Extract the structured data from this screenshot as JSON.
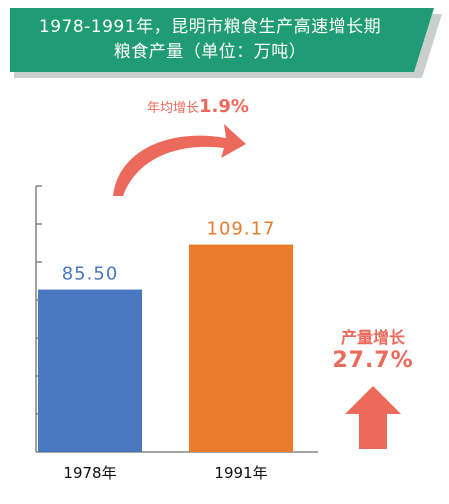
{
  "banner": {
    "line1": "1978-1991年，昆明市粮食生产高速增长期",
    "line2": "粮食产量（单位：万吨）"
  },
  "growth": {
    "label": "年均增长",
    "value": "1.9%"
  },
  "side": {
    "label": "产量增长",
    "value": "27.7%"
  },
  "colors": {
    "banner": "#1f9c73",
    "banner_shadow": "#c9cfcc",
    "bar_1978": "#4a78c0",
    "bar_1991": "#ea7b2b",
    "accent": "#ec6a5c",
    "axis": "#6f6f6f"
  },
  "chart_data": {
    "type": "bar",
    "title": "粮食产量（单位：万吨）",
    "categories": [
      "1978年",
      "1991年"
    ],
    "values": [
      85.5,
      109.17
    ],
    "value_labels": [
      "85.50",
      "109.17"
    ],
    "ylim": [
      0,
      140
    ],
    "grid": false,
    "xlabel": "",
    "ylabel": ""
  }
}
